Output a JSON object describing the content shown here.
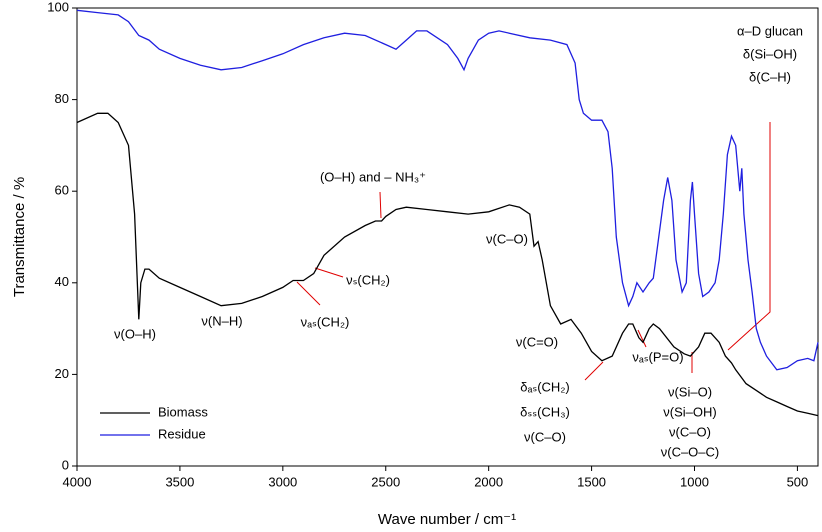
{
  "chart_data": {
    "type": "line",
    "x_label": "Wave number / cm⁻¹",
    "y_label": "Transmittance / %",
    "xlim": [
      4000,
      400
    ],
    "ylim": [
      0,
      100
    ],
    "xticks": [
      4000,
      3500,
      3000,
      2500,
      2000,
      1500,
      1000,
      500
    ],
    "yticks": [
      0,
      20,
      40,
      60,
      80,
      100
    ],
    "legend": "lower left",
    "series": [
      {
        "name": "Biomass",
        "color": "#000000",
        "x": [
          4000,
          3900,
          3850,
          3800,
          3750,
          3720,
          3700,
          3690,
          3670,
          3650,
          3600,
          3500,
          3400,
          3300,
          3200,
          3100,
          3000,
          2950,
          2900,
          2850,
          2800,
          2700,
          2600,
          2550,
          2520,
          2500,
          2450,
          2400,
          2300,
          2200,
          2100,
          2000,
          1900,
          1850,
          1800,
          1780,
          1760,
          1740,
          1700,
          1650,
          1600,
          1550,
          1500,
          1450,
          1400,
          1350,
          1320,
          1300,
          1270,
          1250,
          1220,
          1200,
          1170,
          1100,
          1050,
          1020,
          980,
          950,
          920,
          880,
          850,
          820,
          800,
          750,
          700,
          650,
          600,
          550,
          500,
          450,
          400
        ],
        "values": [
          75,
          77,
          77,
          75,
          70,
          55,
          32,
          40,
          43,
          43,
          41,
          39,
          37,
          35,
          35.5,
          37,
          39,
          40.5,
          40.5,
          42,
          46,
          50,
          52.5,
          53.5,
          53.5,
          54.5,
          56,
          56.5,
          56,
          55.5,
          55,
          55.5,
          57,
          56.5,
          55,
          48,
          49,
          45,
          35,
          31,
          32,
          29,
          25,
          23,
          24,
          29,
          31,
          31,
          28,
          27,
          30,
          31,
          30,
          26,
          24.5,
          24,
          26,
          29,
          29,
          27,
          24,
          22.5,
          21,
          18,
          16.5,
          15,
          14,
          13,
          12,
          11.5,
          11
        ]
      },
      {
        "name": "Residue",
        "color": "#1f1fe0",
        "x": [
          4000,
          3900,
          3800,
          3750,
          3700,
          3650,
          3600,
          3500,
          3400,
          3300,
          3200,
          3100,
          3000,
          2900,
          2800,
          2700,
          2600,
          2500,
          2450,
          2400,
          2350,
          2300,
          2200,
          2150,
          2120,
          2100,
          2050,
          2000,
          1950,
          1900,
          1800,
          1700,
          1620,
          1580,
          1560,
          1540,
          1500,
          1450,
          1420,
          1400,
          1380,
          1350,
          1320,
          1300,
          1280,
          1250,
          1220,
          1200,
          1150,
          1130,
          1110,
          1090,
          1060,
          1040,
          1020,
          1010,
          1000,
          980,
          960,
          930,
          900,
          880,
          860,
          840,
          820,
          800,
          780,
          770,
          760,
          740,
          720,
          700,
          680,
          650,
          600,
          550,
          500,
          450,
          420,
          400
        ],
        "values": [
          99.5,
          99,
          98.5,
          97,
          94,
          93,
          91,
          89,
          87.5,
          86.5,
          87,
          88.5,
          90,
          92,
          93.5,
          94.5,
          94,
          92,
          91,
          93,
          95,
          95,
          92,
          89,
          86.5,
          89,
          93,
          94.5,
          95,
          94.5,
          93.5,
          93,
          92,
          88,
          80,
          77,
          75.5,
          75.5,
          73,
          65,
          50,
          40,
          35,
          37,
          40,
          38,
          40,
          41,
          58,
          63,
          58,
          45,
          38,
          40,
          58,
          62,
          55,
          42,
          37,
          38,
          40,
          45,
          55,
          68,
          72,
          70,
          60,
          65,
          55,
          45,
          38,
          30,
          27,
          24,
          21,
          21.5,
          23,
          23.5,
          23,
          27
        ]
      }
    ],
    "annotations": [
      "ν(O–H)",
      "ν(N–H)",
      "νₐₛ(CH₂)",
      "νₛ(CH₂)",
      "(O–H) and – NH₃⁺",
      "ν(C–O)",
      "ν(C=O)",
      "δₐₛ(CH₂)",
      "δₛₛ(CH₃)",
      "ν(C–O)",
      "νₐₛ(P=O)",
      "ν(Si–O)",
      "ν(Si–OH)",
      "ν(C–O)",
      "ν(C–O–C)",
      "α–D glucan",
      "δ(Si–OH)",
      "δ(C–H)"
    ]
  }
}
